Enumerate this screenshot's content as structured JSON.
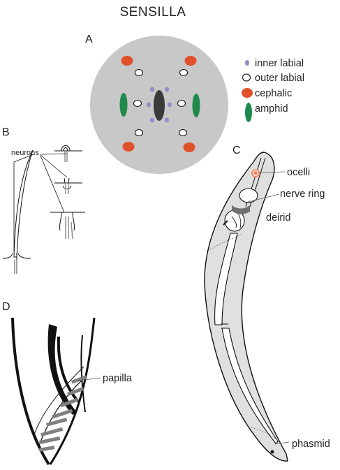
{
  "title": "SENSILLA",
  "panels": {
    "a": "A",
    "b": "B",
    "c": "C",
    "d": "D"
  },
  "legend": {
    "inner_labial": "inner labial",
    "outer_labial": "outer labial",
    "cephalic": "cephalic",
    "amphid": "amphid"
  },
  "labels": {
    "neurons": "neurons",
    "ocelli": "ocelli",
    "nerve_ring": "nerve ring",
    "deirid": "deirid",
    "papilla": "papilla",
    "phasmid": "phasmid"
  },
  "colors": {
    "head_disc": "#c8c8c8",
    "inner_labial": "#8f8fcc",
    "cephalic": "#e0502a",
    "amphid": "#1f8a4c",
    "mouth": "#3a3a3a",
    "worm_body": "#e0e0e0",
    "ocelli": "#f08a6a",
    "papilla": "#808080"
  }
}
